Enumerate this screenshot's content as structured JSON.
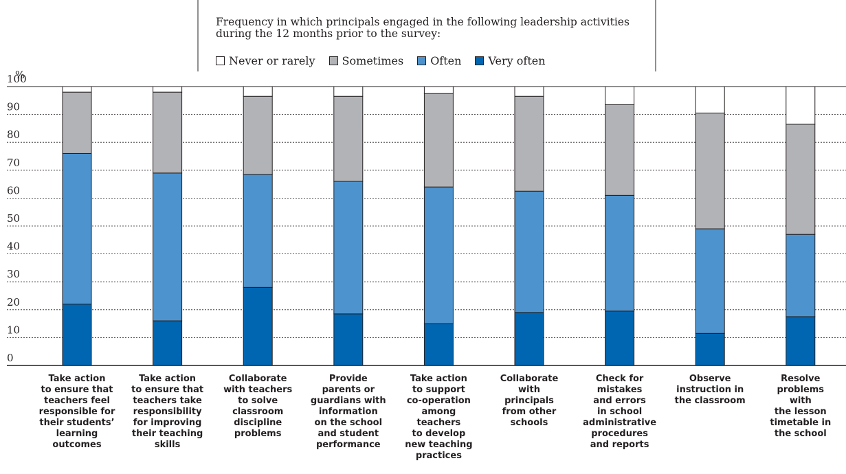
{
  "chart_data": {
    "type": "bar",
    "stacked": true,
    "title": "Frequency in which principals engaged in the following leadership activities during the 12 months prior to the survey:",
    "ylabel": "%",
    "ylim": [
      0,
      100
    ],
    "yticks": [
      "100",
      "90",
      "80",
      "70",
      "60",
      "50",
      "40",
      "30",
      "20",
      "10",
      "0"
    ],
    "grid": true,
    "legend_position": "top",
    "categories": [
      "Take action to ensure that teachers feel responsible for their students’ learning outcomes",
      "Take action to ensure that teachers take responsibility for improving their teaching skills",
      "Collaborate with teachers to solve classroom discipline problems",
      "Provide parents or guardians with information on the school and student performance",
      "Take action to support co-operation among teachers to develop new teaching practices",
      "Collaborate with principals from other schools",
      "Check for mistakes and errors in school administrative procedures and reports",
      "Observe instruction in the classroom",
      "Resolve problems with the lesson timetable in the school"
    ],
    "category_label_lines": [
      [
        "Take action",
        "to ensure that",
        "teachers feel",
        "responsible for",
        "their students’",
        "learning",
        "outcomes"
      ],
      [
        "Take action",
        "to ensure that",
        "teachers take",
        "responsibility",
        "for improving",
        "their teaching",
        "skills"
      ],
      [
        "Collaborate",
        "with teachers",
        "to solve",
        "classroom",
        "discipline",
        "problems"
      ],
      [
        "Provide",
        "parents or",
        "guardians with",
        "information",
        "on the school",
        "and student",
        "performance"
      ],
      [
        "Take action",
        "to support",
        "co-operation",
        "among",
        "teachers",
        "to develop",
        "new teaching",
        "practices"
      ],
      [
        "Collaborate",
        "with",
        "principals",
        "from other",
        "schools"
      ],
      [
        "Check for",
        "mistakes",
        "and errors",
        "in school",
        "administrative",
        "procedures",
        "and reports"
      ],
      [
        "Observe",
        "instruction in",
        "the classroom"
      ],
      [
        "Resolve",
        "problems",
        "with",
        "the lesson",
        "timetable in",
        "the school"
      ]
    ],
    "series": [
      {
        "name": "Very often",
        "color": "#0066b2",
        "values": [
          22,
          16,
          28,
          18.5,
          15,
          19,
          19.5,
          11.5,
          17.5
        ]
      },
      {
        "name": "Often",
        "color": "#4d94cf",
        "values": [
          54,
          53,
          40.5,
          47.5,
          49,
          43.5,
          41.5,
          37.5,
          29.5
        ]
      },
      {
        "name": "Sometimes",
        "color": "#b2b3b6",
        "values": [
          22,
          29,
          28,
          30.5,
          33.5,
          34,
          32.5,
          41.5,
          39.5
        ]
      },
      {
        "name": "Never or rarely",
        "color": "#ffffff",
        "values": [
          2,
          2,
          3.5,
          3.5,
          2.5,
          3.5,
          6.5,
          9.5,
          13.5
        ]
      }
    ]
  },
  "legend": {
    "title": "Frequency in which principals engaged in the following leadership activities during the 12 months prior to the survey:",
    "items": [
      {
        "label": "Never or rarely",
        "color": "#ffffff"
      },
      {
        "label": "Sometimes",
        "color": "#b2b3b6"
      },
      {
        "label": "Often",
        "color": "#4d94cf"
      },
      {
        "label": "Very often",
        "color": "#0066b2"
      }
    ]
  }
}
